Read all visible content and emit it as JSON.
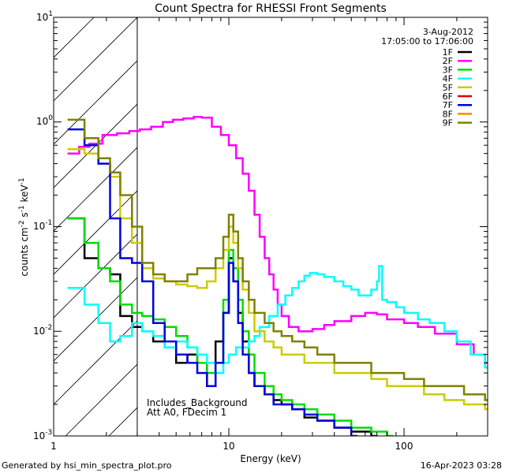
{
  "chart_data": {
    "type": "line",
    "title": "Count Spectra for RHESSI Front Segments",
    "xlabel": "Energy (keV)",
    "ylabel": "counts cm",
    "ylabel_sup1": "-2",
    "ylabel_mid": " s",
    "ylabel_sup2": "-1",
    "ylabel_end": " keV",
    "ylabel_sup3": "-1",
    "xscale": "log",
    "yscale": "log",
    "xlim": [
      1,
      300
    ],
    "ylim": [
      0.001,
      10
    ],
    "x_ticks": [
      {
        "value": 1,
        "label": "1"
      },
      {
        "value": 10,
        "label": "10"
      },
      {
        "value": 100,
        "label": "100"
      }
    ],
    "y_ticks": [
      {
        "base": "10",
        "exp": "1",
        "value": 10
      },
      {
        "base": "10",
        "exp": "0",
        "value": 1
      },
      {
        "base": "10",
        "exp": "-1",
        "value": 0.1
      },
      {
        "base": "10",
        "exp": "-2",
        "value": 0.01
      },
      {
        "base": "10",
        "exp": "-3",
        "value": 0.001
      }
    ],
    "hatched_region_keV": [
      1,
      3
    ],
    "date": "3-Aug-2012",
    "time_range": "17:05:00 to 17:06:00",
    "annotation_line1": "Includes_Background",
    "annotation_line2": "Att A0, FDecim 1",
    "series": [
      {
        "name": "1F",
        "color": "#000000",
        "points": [
          [
            1.2,
            0.12
          ],
          [
            1.5,
            0.05
          ],
          [
            1.8,
            0.04
          ],
          [
            2.1,
            0.035
          ],
          [
            2.4,
            0.014
          ],
          [
            2.8,
            0.011
          ],
          [
            3.2,
            0.01
          ],
          [
            3.7,
            0.008
          ],
          [
            4.3,
            0.007
          ],
          [
            5,
            0.005
          ],
          [
            5.8,
            0.006
          ],
          [
            6.6,
            0.005
          ],
          [
            7.5,
            0.003
          ],
          [
            8.4,
            0.008
          ],
          [
            9.3,
            0.015
          ],
          [
            10,
            0.05
          ],
          [
            10.6,
            0.03
          ],
          [
            11.3,
            0.015
          ],
          [
            12,
            0.008
          ],
          [
            13,
            0.004
          ],
          [
            14,
            0.003
          ],
          [
            16,
            0.0025
          ],
          [
            18,
            0.0022
          ],
          [
            20,
            0.002
          ],
          [
            23,
            0.0018
          ],
          [
            27,
            0.0015
          ],
          [
            32,
            0.0014
          ],
          [
            40,
            0.0012
          ],
          [
            50,
            0.0011
          ],
          [
            65,
            0.001
          ]
        ]
      },
      {
        "name": "2F",
        "color": "#ff00ff",
        "points": [
          [
            1.2,
            0.5
          ],
          [
            1.4,
            0.58
          ],
          [
            1.6,
            0.62
          ],
          [
            1.9,
            0.75
          ],
          [
            2.3,
            0.78
          ],
          [
            2.7,
            0.82
          ],
          [
            3.1,
            0.85
          ],
          [
            3.6,
            0.9
          ],
          [
            4.2,
            1.0
          ],
          [
            4.8,
            1.05
          ],
          [
            5.5,
            1.08
          ],
          [
            6.3,
            1.12
          ],
          [
            7,
            1.1
          ],
          [
            8,
            0.9
          ],
          [
            9,
            0.75
          ],
          [
            10,
            0.6
          ],
          [
            11,
            0.45
          ],
          [
            12,
            0.32
          ],
          [
            13,
            0.22
          ],
          [
            14,
            0.13
          ],
          [
            15,
            0.08
          ],
          [
            16,
            0.05
          ],
          [
            17,
            0.035
          ],
          [
            18,
            0.025
          ],
          [
            19,
            0.018
          ],
          [
            20,
            0.014
          ],
          [
            22,
            0.011
          ],
          [
            25,
            0.01
          ],
          [
            30,
            0.0105
          ],
          [
            35,
            0.0115
          ],
          [
            40,
            0.0125
          ],
          [
            50,
            0.014
          ],
          [
            60,
            0.015
          ],
          [
            70,
            0.0145
          ],
          [
            80,
            0.013
          ],
          [
            100,
            0.012
          ],
          [
            120,
            0.011
          ],
          [
            150,
            0.0095
          ],
          [
            200,
            0.0075
          ],
          [
            250,
            0.006
          ],
          [
            290,
            0.005
          ]
        ]
      },
      {
        "name": "3F",
        "color": "#00dd00",
        "points": [
          [
            1.2,
            0.12
          ],
          [
            1.5,
            0.07
          ],
          [
            1.8,
            0.04
          ],
          [
            2.1,
            0.03
          ],
          [
            2.4,
            0.018
          ],
          [
            2.8,
            0.015
          ],
          [
            3.2,
            0.014
          ],
          [
            3.7,
            0.013
          ],
          [
            4.3,
            0.011
          ],
          [
            5,
            0.009
          ],
          [
            5.8,
            0.007
          ],
          [
            6.6,
            0.005
          ],
          [
            7.5,
            0.004
          ],
          [
            8.4,
            0.005
          ],
          [
            9.3,
            0.02
          ],
          [
            10,
            0.06
          ],
          [
            10.6,
            0.04
          ],
          [
            11.3,
            0.02
          ],
          [
            12,
            0.01
          ],
          [
            13,
            0.006
          ],
          [
            14,
            0.004
          ],
          [
            16,
            0.003
          ],
          [
            18,
            0.0025
          ],
          [
            20,
            0.0022
          ],
          [
            23,
            0.002
          ],
          [
            27,
            0.0018
          ],
          [
            32,
            0.0016
          ],
          [
            40,
            0.0014
          ],
          [
            50,
            0.0012
          ],
          [
            65,
            0.0011
          ],
          [
            80,
            0.001
          ]
        ]
      },
      {
        "name": "4F",
        "color": "#00ffff",
        "points": [
          [
            1.2,
            0.026
          ],
          [
            1.5,
            0.018
          ],
          [
            1.8,
            0.012
          ],
          [
            2.1,
            0.008
          ],
          [
            2.4,
            0.009
          ],
          [
            2.8,
            0.012
          ],
          [
            3.2,
            0.01
          ],
          [
            3.7,
            0.009
          ],
          [
            4.3,
            0.007
          ],
          [
            5,
            0.008
          ],
          [
            5.8,
            0.007
          ],
          [
            6.6,
            0.006
          ],
          [
            7.5,
            0.005
          ],
          [
            8.4,
            0.004
          ],
          [
            9.3,
            0.005
          ],
          [
            10,
            0.006
          ],
          [
            11,
            0.007
          ],
          [
            12,
            0.007
          ],
          [
            13,
            0.008
          ],
          [
            14,
            0.009
          ],
          [
            15,
            0.011
          ],
          [
            17,
            0.014
          ],
          [
            19,
            0.018
          ],
          [
            21,
            0.022
          ],
          [
            23,
            0.026
          ],
          [
            25,
            0.03
          ],
          [
            27,
            0.034
          ],
          [
            29,
            0.036
          ],
          [
            32,
            0.035
          ],
          [
            35,
            0.033
          ],
          [
            40,
            0.03
          ],
          [
            45,
            0.027
          ],
          [
            50,
            0.025
          ],
          [
            55,
            0.022
          ],
          [
            60,
            0.022
          ],
          [
            65,
            0.025
          ],
          [
            70,
            0.03
          ],
          [
            72,
            0.042
          ],
          [
            75,
            0.02
          ],
          [
            80,
            0.019
          ],
          [
            90,
            0.017
          ],
          [
            100,
            0.015
          ],
          [
            120,
            0.013
          ],
          [
            140,
            0.012
          ],
          [
            170,
            0.01
          ],
          [
            200,
            0.008
          ],
          [
            240,
            0.006
          ],
          [
            290,
            0.0045
          ]
        ]
      },
      {
        "name": "5F",
        "color": "#cccc00",
        "points": [
          [
            1.2,
            0.55
          ],
          [
            1.5,
            0.5
          ],
          [
            1.8,
            0.4
          ],
          [
            2.1,
            0.3
          ],
          [
            2.4,
            0.12
          ],
          [
            2.8,
            0.07
          ],
          [
            3.2,
            0.04
          ],
          [
            3.7,
            0.032
          ],
          [
            4.3,
            0.03
          ],
          [
            5,
            0.028
          ],
          [
            5.8,
            0.027
          ],
          [
            6.6,
            0.026
          ],
          [
            7.5,
            0.03
          ],
          [
            8.4,
            0.04
          ],
          [
            9.3,
            0.06
          ],
          [
            10,
            0.1
          ],
          [
            10.6,
            0.07
          ],
          [
            11.3,
            0.04
          ],
          [
            12,
            0.025
          ],
          [
            13,
            0.015
          ],
          [
            14,
            0.01
          ],
          [
            16,
            0.008
          ],
          [
            18,
            0.007
          ],
          [
            20,
            0.006
          ],
          [
            23,
            0.006
          ],
          [
            27,
            0.005
          ],
          [
            32,
            0.005
          ],
          [
            40,
            0.004
          ],
          [
            50,
            0.004
          ],
          [
            65,
            0.0035
          ],
          [
            80,
            0.003
          ],
          [
            100,
            0.003
          ],
          [
            130,
            0.0025
          ],
          [
            170,
            0.0022
          ],
          [
            220,
            0.002
          ],
          [
            290,
            0.0018
          ]
        ]
      },
      {
        "name": "6F",
        "color": "#dd0000",
        "points": []
      },
      {
        "name": "7F",
        "color": "#0000dd",
        "points": [
          [
            1.2,
            0.85
          ],
          [
            1.5,
            0.6
          ],
          [
            1.8,
            0.4
          ],
          [
            2.1,
            0.12
          ],
          [
            2.4,
            0.05
          ],
          [
            2.8,
            0.045
          ],
          [
            3.2,
            0.03
          ],
          [
            3.7,
            0.012
          ],
          [
            4.3,
            0.008
          ],
          [
            5,
            0.006
          ],
          [
            5.8,
            0.005
          ],
          [
            6.6,
            0.004
          ],
          [
            7.5,
            0.003
          ],
          [
            8.4,
            0.005
          ],
          [
            9.3,
            0.015
          ],
          [
            10,
            0.045
          ],
          [
            10.6,
            0.03
          ],
          [
            11.3,
            0.012
          ],
          [
            12,
            0.006
          ],
          [
            13,
            0.004
          ],
          [
            14,
            0.003
          ],
          [
            16,
            0.0025
          ],
          [
            18,
            0.002
          ],
          [
            20,
            0.002
          ],
          [
            23,
            0.0018
          ],
          [
            27,
            0.0016
          ],
          [
            32,
            0.0014
          ],
          [
            40,
            0.0012
          ],
          [
            50,
            0.001
          ]
        ]
      },
      {
        "name": "8F",
        "color": "#ff8800",
        "points": []
      },
      {
        "name": "9F",
        "color": "#808000",
        "points": [
          [
            1.2,
            1.05
          ],
          [
            1.5,
            0.7
          ],
          [
            1.8,
            0.45
          ],
          [
            2.1,
            0.33
          ],
          [
            2.4,
            0.2
          ],
          [
            2.8,
            0.1
          ],
          [
            3.2,
            0.045
          ],
          [
            3.7,
            0.035
          ],
          [
            4.3,
            0.03
          ],
          [
            5,
            0.03
          ],
          [
            5.8,
            0.035
          ],
          [
            6.6,
            0.04
          ],
          [
            7.5,
            0.04
          ],
          [
            8.4,
            0.05
          ],
          [
            9.3,
            0.08
          ],
          [
            10,
            0.13
          ],
          [
            10.6,
            0.09
          ],
          [
            11.3,
            0.05
          ],
          [
            12,
            0.03
          ],
          [
            13,
            0.02
          ],
          [
            14,
            0.015
          ],
          [
            16,
            0.012
          ],
          [
            18,
            0.01
          ],
          [
            20,
            0.009
          ],
          [
            23,
            0.008
          ],
          [
            27,
            0.007
          ],
          [
            32,
            0.006
          ],
          [
            40,
            0.005
          ],
          [
            50,
            0.005
          ],
          [
            65,
            0.004
          ],
          [
            80,
            0.004
          ],
          [
            100,
            0.0035
          ],
          [
            130,
            0.003
          ],
          [
            170,
            0.003
          ],
          [
            220,
            0.0025
          ],
          [
            290,
            0.0022
          ]
        ]
      }
    ]
  },
  "footer": {
    "generated_by": "Generated by hsi_min_spectra_plot.pro",
    "date": "16-Apr-2023 03:28"
  }
}
